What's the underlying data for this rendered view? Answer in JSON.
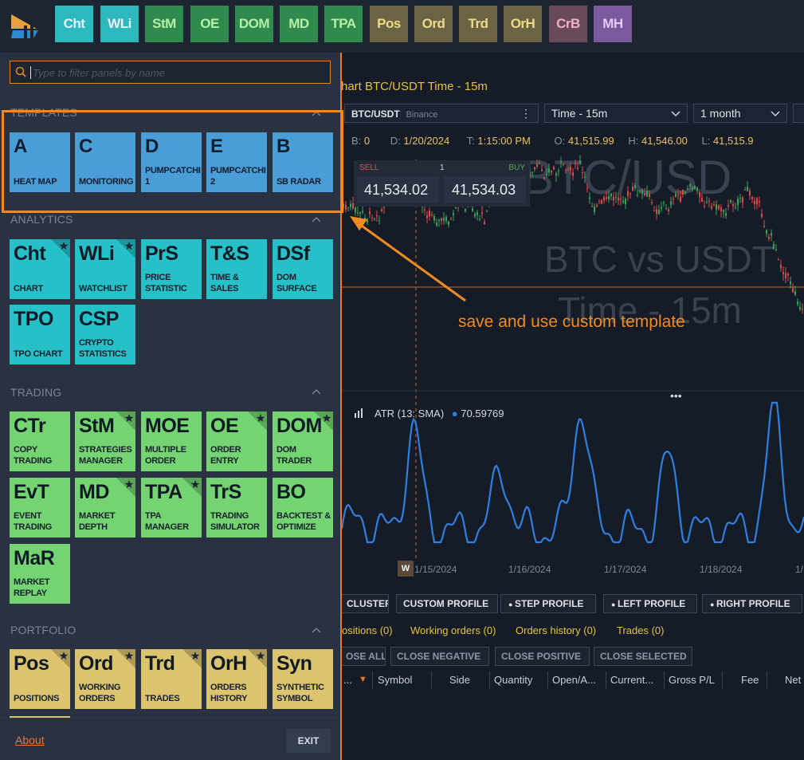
{
  "toolbar": {
    "buttons": [
      {
        "label": "Cht",
        "bg": "#2bb8bf",
        "fg": "#eaf6ff"
      },
      {
        "label": "WLi",
        "bg": "#2bb8bf",
        "fg": "#eaf6ff"
      },
      {
        "label": "StM",
        "bg": "#2f8a4e",
        "fg": "#b4f0a8"
      },
      {
        "label": "OE",
        "bg": "#2f8a4e",
        "fg": "#b4f0a8"
      },
      {
        "label": "DOM",
        "bg": "#2f8a4e",
        "fg": "#b4f0a8"
      },
      {
        "label": "MD",
        "bg": "#2f8a4e",
        "fg": "#b4f0a8"
      },
      {
        "label": "TPA",
        "bg": "#2f8a4e",
        "fg": "#b4f0a8"
      },
      {
        "label": "Pos",
        "bg": "#6b6444",
        "fg": "#f0d98a"
      },
      {
        "label": "Ord",
        "bg": "#6b6444",
        "fg": "#f0d98a"
      },
      {
        "label": "Trd",
        "bg": "#6b6444",
        "fg": "#f0d98a"
      },
      {
        "label": "OrH",
        "bg": "#6b6444",
        "fg": "#f0d98a"
      },
      {
        "label": "CrB",
        "bg": "#6a4a5a",
        "fg": "#f0b0c6"
      },
      {
        "label": "MH",
        "bg": "#7a5a9c",
        "fg": "#e8c8ff"
      }
    ]
  },
  "search": {
    "placeholder": "Type to filter panels by name",
    "value": ""
  },
  "sections": {
    "templates": "TEMPLATES",
    "analytics": "ANALYTICS",
    "trading": "TRADING",
    "portfolio": "PORTFOLIO"
  },
  "templates": [
    {
      "abbr": "A",
      "name": "HEAT MAP"
    },
    {
      "abbr": "C",
      "name": "MONITORING"
    },
    {
      "abbr": "D",
      "name": "PUMPCATCHI 1"
    },
    {
      "abbr": "E",
      "name": "PUMPCATCHI 2"
    },
    {
      "abbr": "B",
      "name": "SB RADAR"
    }
  ],
  "analytics": [
    {
      "abbr": "Cht",
      "name": "CHART",
      "star": true
    },
    {
      "abbr": "WLi",
      "name": "WATCHLIST",
      "star": true
    },
    {
      "abbr": "PrS",
      "name": "PRICE STATISTIC",
      "star": false
    },
    {
      "abbr": "T&S",
      "name": "TIME & SALES",
      "star": false
    },
    {
      "abbr": "DSf",
      "name": "DOM SURFACE",
      "star": false
    },
    {
      "abbr": "TPO",
      "name": "TPO CHART",
      "star": false
    },
    {
      "abbr": "CSP",
      "name": "CRYPTO STATISTICS",
      "star": false
    }
  ],
  "trading": [
    {
      "abbr": "CTr",
      "name": "COPY TRADING",
      "star": false
    },
    {
      "abbr": "StM",
      "name": "STRATEGIES MANAGER",
      "star": true
    },
    {
      "abbr": "MOE",
      "name": "MULTIPLE ORDER",
      "star": false
    },
    {
      "abbr": "OE",
      "name": "ORDER ENTRY",
      "star": true
    },
    {
      "abbr": "DOM",
      "name": "DOM TRADER",
      "star": true
    },
    {
      "abbr": "EvT",
      "name": "EVENT TRADING",
      "star": false
    },
    {
      "abbr": "MD",
      "name": "MARKET DEPTH",
      "star": true
    },
    {
      "abbr": "TPA",
      "name": "TPA MANAGER",
      "star": true
    },
    {
      "abbr": "TrS",
      "name": "TRADING SIMULATOR",
      "star": false
    },
    {
      "abbr": "BO",
      "name": "BACKTEST & OPTIMIZE",
      "star": false
    },
    {
      "abbr": "MaR",
      "name": "MARKET REPLAY",
      "star": false
    }
  ],
  "portfolio": [
    {
      "abbr": "Pos",
      "name": "POSITIONS",
      "star": true
    },
    {
      "abbr": "Ord",
      "name": "WORKING ORDERS",
      "star": true
    },
    {
      "abbr": "Trd",
      "name": "TRADES",
      "star": true
    },
    {
      "abbr": "OrH",
      "name": "ORDERS HISTORY",
      "star": true
    },
    {
      "abbr": "Syn",
      "name": "SYNTHETIC SYMBOL",
      "star": false
    }
  ],
  "footer": {
    "about": "About",
    "exit": "EXIT"
  },
  "chart": {
    "title": "hart BTC/USDT Time - 15m",
    "symbol": "BTC/USDT",
    "exchange": "Binance",
    "timeframe": "Time - 15m",
    "range": "1 month",
    "info": {
      "b_key": "B:",
      "b_val": "0",
      "d_key": "D:",
      "d_val": "1/20/2024",
      "t_key": "T:",
      "t_val": "1:15:00 PM",
      "o_key": "O:",
      "o_val": "41,515.99",
      "h_key": "H:",
      "h_val": "41,546.00",
      "l_key": "L:",
      "l_val": "41,515.9"
    },
    "quote": {
      "sell": "SELL",
      "qty": "1",
      "buy": "BUY",
      "bid": "41,534.02",
      "ask": "41,534.03"
    },
    "watermark": {
      "line1": "BTC/USD",
      "line2": "BTC vs USDT",
      "line3": "Time - 15m"
    },
    "annotation": "save and use custom template",
    "atr": {
      "label": "ATR (13: SMA)",
      "value": "70.59769",
      "color": "#2f7fe0"
    },
    "x_ticks": [
      "1/15/2024",
      "1/16/2024",
      "1/17/2024",
      "1/18/2024",
      "1/"
    ],
    "w_marker": "W"
  },
  "profile_buttons": [
    "CLUSTER",
    "CUSTOM PROFILE",
    "STEP PROFILE",
    "LEFT PROFILE",
    "RIGHT PROFILE"
  ],
  "tabs": [
    "ositions (0)",
    "Working orders (0)",
    "Orders history (0)",
    "Trades (0)"
  ],
  "close_buttons": [
    "OSE ALL",
    "CLOSE NEGATIVE",
    "CLOSE POSITIVE",
    "CLOSE SELECTED"
  ],
  "columns": [
    "...",
    "Symbol",
    "Side",
    "Quantity",
    "Open/A...",
    "Current...",
    "Gross P/L",
    "Fee",
    "Net"
  ]
}
